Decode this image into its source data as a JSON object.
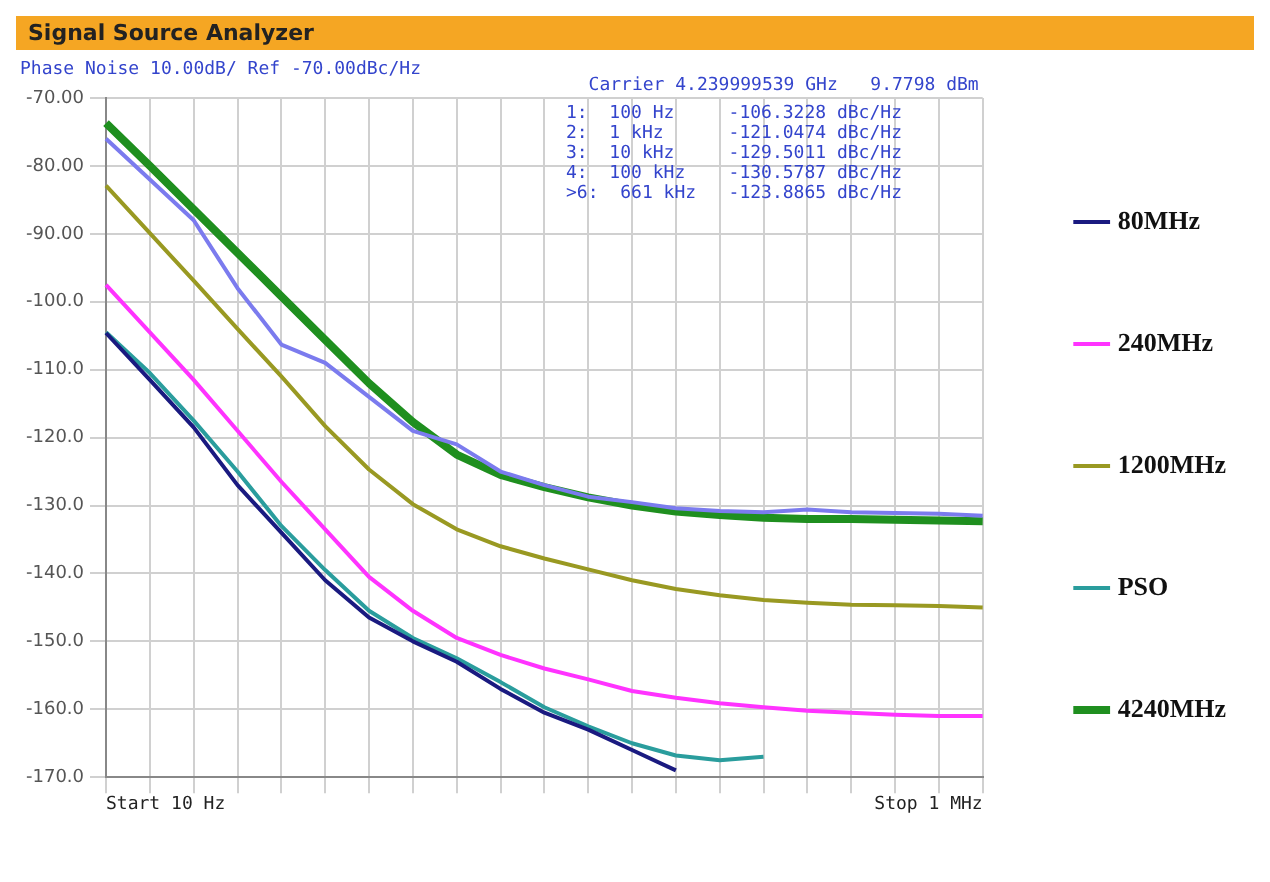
{
  "chart_data": {
    "type": "line",
    "title": "Signal Source Analyzer",
    "annotations": [
      "Phase Noise 10.00dB/ Ref -70.00dBc/Hz",
      "Carrier 4.239999539 GHz   9.7798 dBm",
      "1:  100 Hz     -106.3228 dBc/Hz",
      "2:  1 kHz      -121.0474 dBc/Hz",
      "3:  10 kHz     -129.5011 dBc/Hz",
      "4:  100 kHz    -130.5787 dBc/Hz",
      ">6:  661 kHz   -123.8865 dBc/Hz",
      "Start 10 Hz",
      "Stop 1 MHz"
    ],
    "categories": [
      null,
      null,
      null,
      null,
      null,
      null,
      null,
      null,
      null,
      null,
      null,
      null,
      null,
      null,
      null,
      null,
      null,
      null,
      null,
      null,
      null
    ],
    "ylim": [
      -170,
      -70
    ],
    "yticks": [
      {
        "value": -70,
        "label": "-70.00"
      },
      {
        "value": -80,
        "label": "-80.00"
      },
      {
        "value": -90,
        "label": "-90.00"
      },
      {
        "value": -100,
        "label": "-100.0"
      },
      {
        "value": -110,
        "label": "-110.0"
      },
      {
        "value": -120,
        "label": "-120.0"
      },
      {
        "value": -130,
        "label": "-130.0"
      },
      {
        "value": -140,
        "label": "-140.0"
      },
      {
        "value": -150,
        "label": "-150.0"
      },
      {
        "value": -160,
        "label": "-160.0"
      },
      {
        "value": -170,
        "label": "-170.0"
      }
    ],
    "grid": true,
    "legend": "right",
    "series": [
      {
        "color": "#7b7bee",
        "values": [
          -76,
          -82,
          -88,
          -98,
          -106.3,
          -109,
          -114,
          -119,
          -121,
          -125,
          -127,
          -128.7,
          -129.5,
          -130.4,
          -130.8,
          -131,
          -130.6,
          -131,
          -131.1,
          -131.2,
          -131.5
        ]
      },
      {
        "name": "80MHz",
        "color": "#1a1a80",
        "values": [
          -104.6,
          -111.5,
          -118.5,
          -127,
          -134,
          -141,
          -146.5,
          -150,
          -153,
          -157,
          -160.5,
          -163,
          -166,
          -169,
          null,
          null,
          null,
          null,
          null,
          null,
          null
        ]
      },
      {
        "name": "240MHz",
        "color": "#ff33ff",
        "values": [
          -97.5,
          -104.5,
          -111.5,
          -119,
          -126.5,
          -133.5,
          -140.5,
          -145.5,
          -149.5,
          -152,
          -154,
          -155.6,
          -157.3,
          -158.3,
          -159.1,
          -159.7,
          -160.2,
          -160.5,
          -160.8,
          -161,
          -161
        ]
      },
      {
        "name": "1200MHz",
        "color": "#999922",
        "values": [
          -82.9,
          -89.9,
          -96.9,
          -104,
          -111,
          -118.3,
          -124.7,
          -129.8,
          -133.5,
          -136,
          -137.8,
          -139.4,
          -141,
          -142.3,
          -143.2,
          -143.9,
          -144.3,
          -144.6,
          -144.7,
          -144.8,
          -145
        ]
      },
      {
        "name": "PSO",
        "color": "#2a9d9d",
        "values": [
          -104.5,
          -110.5,
          -117.5,
          -125,
          -133,
          -139.5,
          -145.5,
          -149.5,
          -152.5,
          -156,
          -159.7,
          -162.5,
          -165,
          -166.8,
          -167.5,
          -167,
          null,
          null,
          null,
          null,
          null
        ]
      },
      {
        "name": "4240MHz",
        "color": "#1f8f1f",
        "values": [
          -73.7,
          -80,
          -86.4,
          -92.8,
          -99.2,
          -105.6,
          -112,
          -117.7,
          -122.5,
          -125.5,
          -127.3,
          -128.8,
          -130,
          -130.9,
          -131.4,
          -131.8,
          -132,
          -132,
          -132.1,
          -132.2,
          -132.3
        ]
      }
    ]
  }
}
